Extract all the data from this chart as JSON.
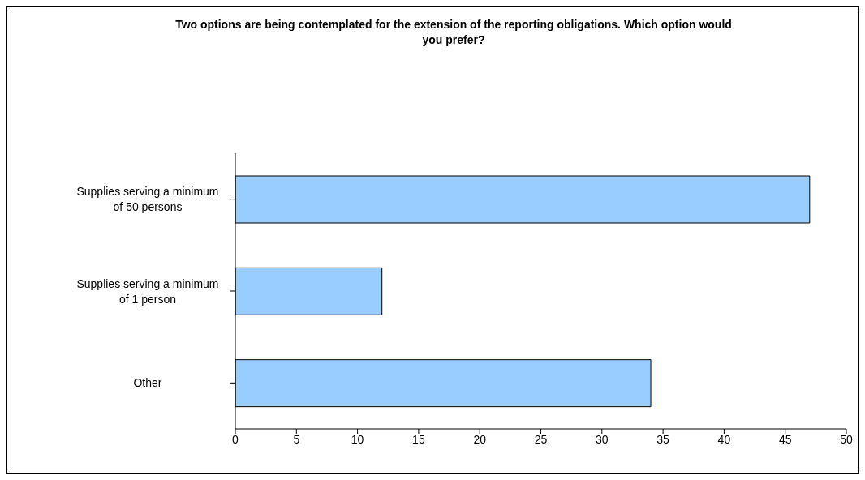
{
  "chart_data": {
    "type": "bar",
    "orientation": "horizontal",
    "title": "Two options are being contemplated for the extension of the reporting obligations. Which option would you prefer?",
    "categories": [
      "Supplies serving a minimum of 50 persons",
      "Supplies serving a minimum of 1 person",
      "Other"
    ],
    "values": [
      47,
      12,
      34
    ],
    "color": "#99ccff",
    "xlim": [
      0,
      50
    ],
    "xticks": [
      0,
      5,
      10,
      15,
      20,
      25,
      30,
      35,
      40,
      45,
      50
    ],
    "grid": false,
    "legend": false
  }
}
